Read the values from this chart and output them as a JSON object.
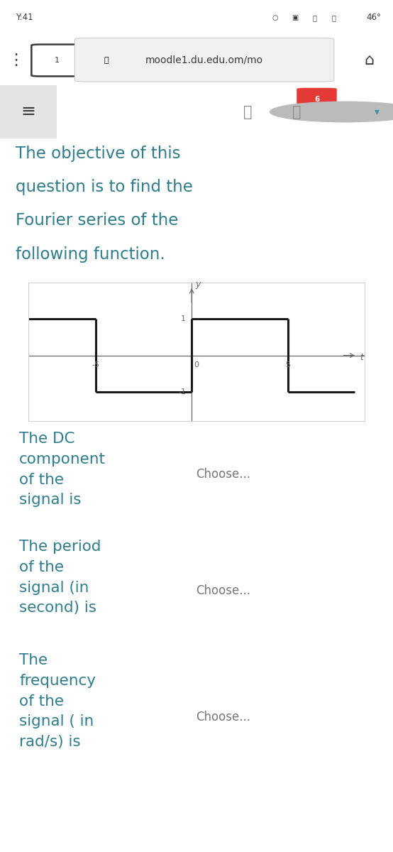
{
  "bg_white": "#ffffff",
  "bg_light_blue": "#daeef3",
  "bg_nav": "#f1f1f1",
  "text_dark": "#3a3a3a",
  "text_teal": "#2e7d8c",
  "choose_gray": "#777777",
  "signal_color": "#1a1a1a",
  "axis_color": "#666666",
  "plot_border": "#cccccc",
  "status_bar_text": "Y:41",
  "status_bar_right": "46°",
  "url_text": "moodle1.du.edu.om/mo",
  "title_line1": "The objective of this",
  "title_line2": "question is to find the",
  "title_line3": "Fourier series of the",
  "title_line4": "following function.",
  "q1": "The DC\ncomponent\nof the\nsignal is",
  "q2": "The period\nof the\nsignal (in\nsecond) is",
  "q3": "The\nfrequency\nof the\nsignal ( in\nrad/s) is",
  "choose_text": "Choose...",
  "fig_w": 5.54,
  "fig_h": 12.0,
  "dpi": 100,
  "graph_xlim": [
    -8.5,
    9.0
  ],
  "graph_ylim": [
    -1.8,
    2.0
  ]
}
